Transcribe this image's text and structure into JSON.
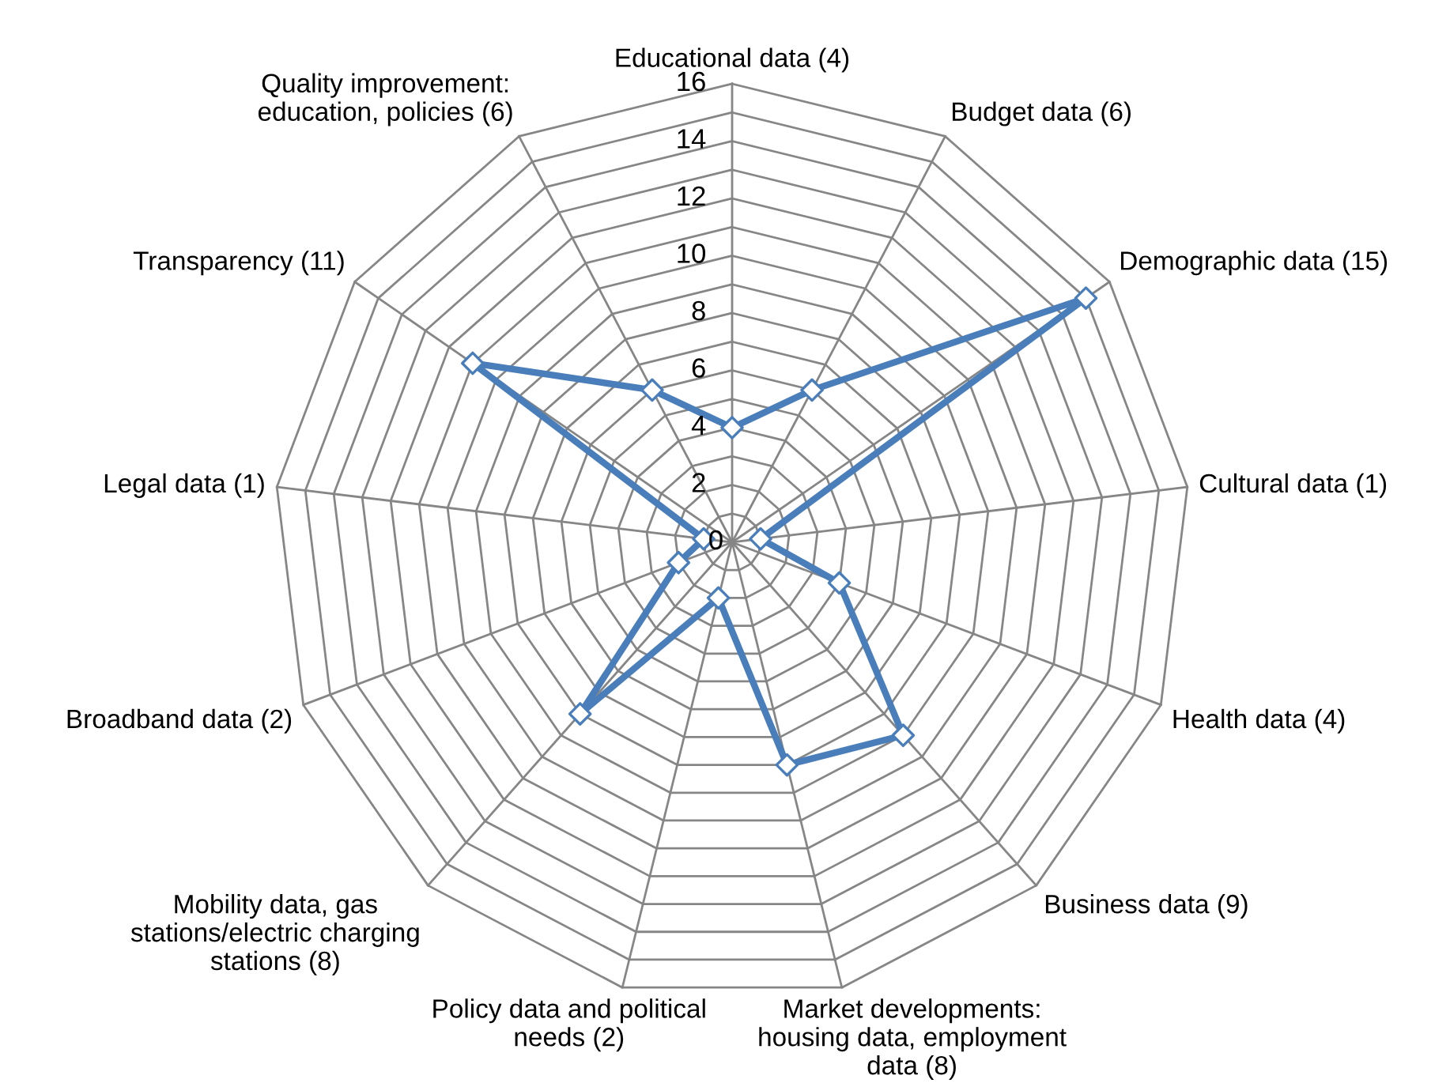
{
  "chart_data": {
    "type": "radar",
    "categories": [
      "Educational data (4)",
      "Budget data (6)",
      "Demographic data (15)",
      "Cultural data (1)",
      "Health data (4)",
      "Business data (9)",
      "Market developments:\nhousing data, employment\ndata (8)",
      "Policy data and political\nneeds (2)",
      "Mobility data, gas\nstations/electric charging\nstations (8)",
      "Broadband data (2)",
      "Legal data (1)",
      "Transparency (11)",
      "Quality improvement:\neducation, policies (6)"
    ],
    "series": [
      {
        "color": "#4a7ebb",
        "values": [
          4,
          6,
          15,
          1,
          4,
          9,
          8,
          2,
          8,
          2,
          1,
          11,
          6
        ]
      }
    ],
    "ylim": [
      0,
      16
    ],
    "yticks": [
      0,
      2,
      4,
      6,
      8,
      10,
      12,
      14,
      16
    ],
    "grid": true,
    "marker": "diamond",
    "line_style": "solid"
  }
}
